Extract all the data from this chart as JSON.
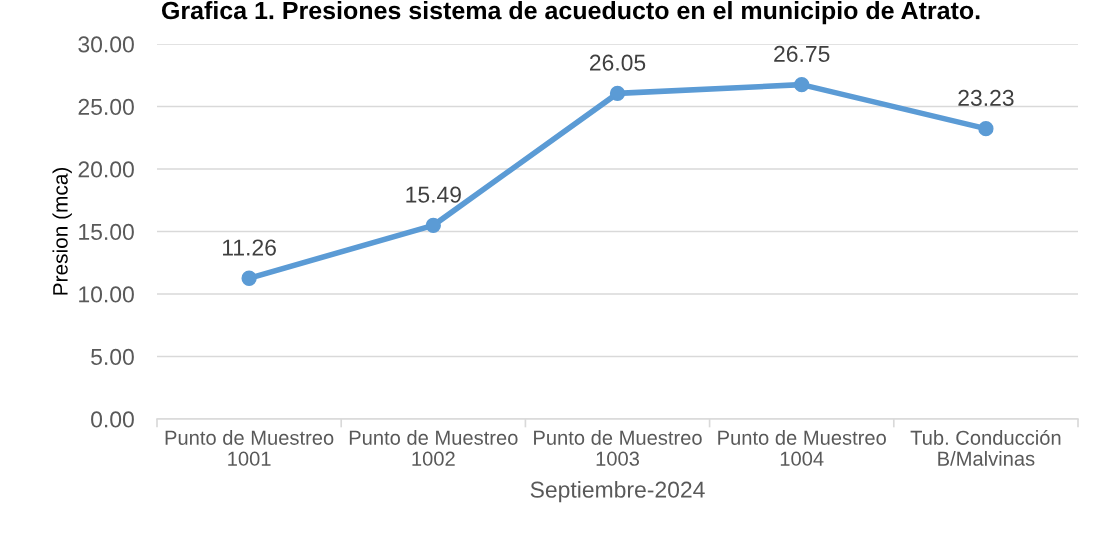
{
  "chart_data": {
    "type": "line",
    "title": "Grafica 1. Presiones sistema de acueducto en el municipio de Atrato.",
    "xlabel": "Septiembre-2024",
    "ylabel": "Presion (mca)",
    "categories": [
      "Punto de Muestreo\n1001",
      "Punto de Muestreo\n1002",
      "Punto de Muestreo\n1003",
      "Punto de Muestreo\n1004",
      "Tub. Conducción\nB/Malvinas"
    ],
    "series": [
      {
        "color": "#5b9bd5",
        "values": [
          11.26,
          15.49,
          26.05,
          26.75,
          23.23
        ]
      }
    ],
    "ylim": [
      0,
      30
    ],
    "yticks": [
      {
        "value": 0,
        "label": "0.00"
      },
      {
        "value": 5,
        "label": "5.00"
      },
      {
        "value": 10,
        "label": "10.00"
      },
      {
        "value": 15,
        "label": "15.00"
      },
      {
        "value": 20,
        "label": "20.00"
      },
      {
        "value": 25,
        "label": "25.00"
      },
      {
        "value": 30,
        "label": "30.00"
      }
    ],
    "grid": "y",
    "marker": "circle",
    "line_style": "solid",
    "data_labels": true
  }
}
